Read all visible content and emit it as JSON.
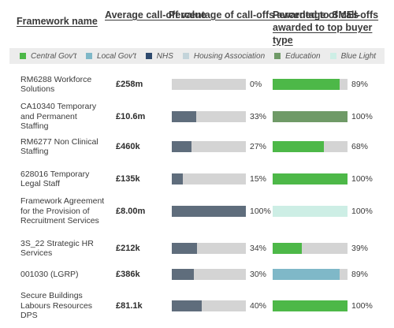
{
  "headers": {
    "framework": "Framework name",
    "avg": "Average call-off value",
    "sme": "Percentage of call-offs awarded to SMEs",
    "buyer": "Percentage of call-offs awarded to top buyer type"
  },
  "legend": [
    {
      "label": "Central Gov't",
      "color": "#4db848"
    },
    {
      "label": "Local Gov't",
      "color": "#7fb8c8"
    },
    {
      "label": "NHS",
      "color": "#2e4a6e"
    },
    {
      "label": "Housing Association",
      "color": "#c3d4da"
    },
    {
      "label": "Education",
      "color": "#6f9a67"
    },
    {
      "label": "Blue Light",
      "color": "#cdeee5"
    }
  ],
  "colors": {
    "sme_fill": "#5f6d7c",
    "bar_bg": "#d4d4d4"
  },
  "chart_data": {
    "type": "bar",
    "title": "",
    "categories": [
      "RM6288 Workforce Solutions",
      "CA10340 Temporary and Permanent Staffing",
      "RM6277 Non Clinical Staffing",
      "628016 Temporary Legal Staff",
      "Framework Agreement for the Provision of Recruitment Services",
      "3S_22 Strategic HR Services",
      "001030 (LGRP)",
      "Secure Buildings Labours Resources DPS"
    ],
    "avg_values": [
      "£258m",
      "£10.6m",
      "£460k",
      "£135k",
      "£8.00m",
      "£212k",
      "£386k",
      "£81.1k"
    ],
    "series": [
      {
        "name": "Percentage of call-offs awarded to SMEs",
        "values": [
          0,
          33,
          27,
          15,
          100,
          34,
          30,
          40
        ]
      },
      {
        "name": "Percentage of call-offs awarded to top buyer type",
        "values": [
          89,
          100,
          68,
          100,
          100,
          39,
          89,
          100
        ]
      }
    ],
    "top_buyer_type": [
      "Central Gov't",
      "Education",
      "Central Gov't",
      "Central Gov't",
      "Blue Light",
      "Central Gov't",
      "Local Gov't",
      "Central Gov't"
    ],
    "ylim": [
      0,
      100
    ]
  }
}
